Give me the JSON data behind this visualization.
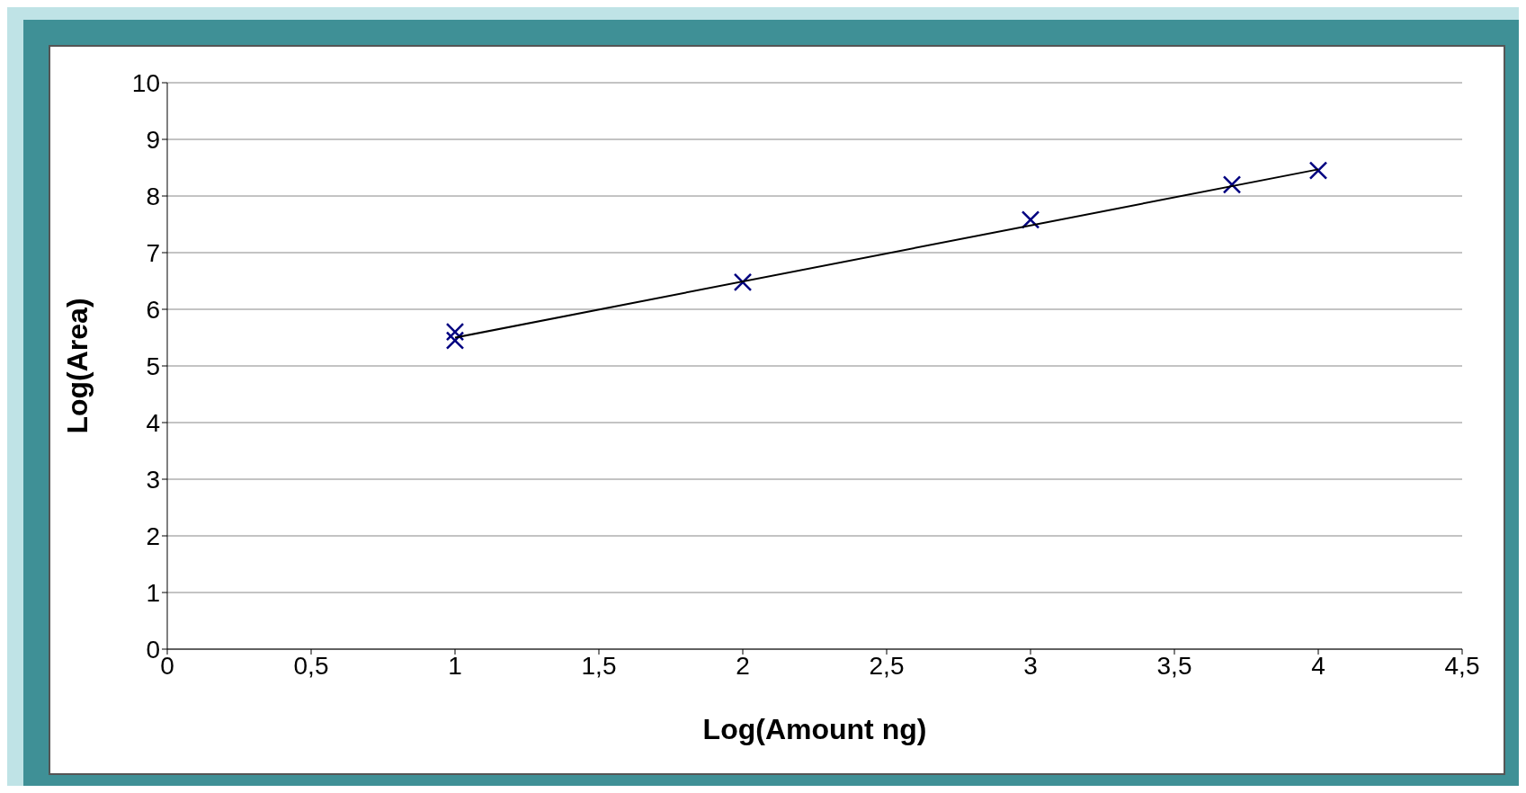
{
  "chart_data": {
    "type": "scatter",
    "xlabel": "Log(Amount ng)",
    "ylabel": "Log(Area)",
    "xlim": [
      0,
      4.5
    ],
    "xticks": [
      0,
      {
        "value": 0.5,
        "label": "0,5"
      },
      1,
      {
        "value": 1.5,
        "label": "1,5"
      },
      2,
      {
        "value": 2.5,
        "label": "2,5"
      },
      3,
      {
        "value": 3.5,
        "label": "3,5"
      },
      4,
      {
        "value": 4.5,
        "label": "4,5"
      }
    ],
    "ylim": [
      0,
      10
    ],
    "yticks": [
      0,
      1,
      2,
      3,
      4,
      5,
      6,
      7,
      8,
      9,
      10
    ],
    "grid": "y",
    "legend": false,
    "marker": "cross",
    "series": [
      {
        "color": "#000080",
        "x": [
          1,
          1,
          2,
          3,
          3.7,
          4
        ],
        "values": [
          5.6,
          5.45,
          6.48,
          7.58,
          8.2,
          8.45
        ]
      },
      {
        "type": "line",
        "color": "#000000",
        "x": [
          1,
          4
        ],
        "values": [
          5.5,
          8.47
        ],
        "marker": "none"
      }
    ]
  }
}
